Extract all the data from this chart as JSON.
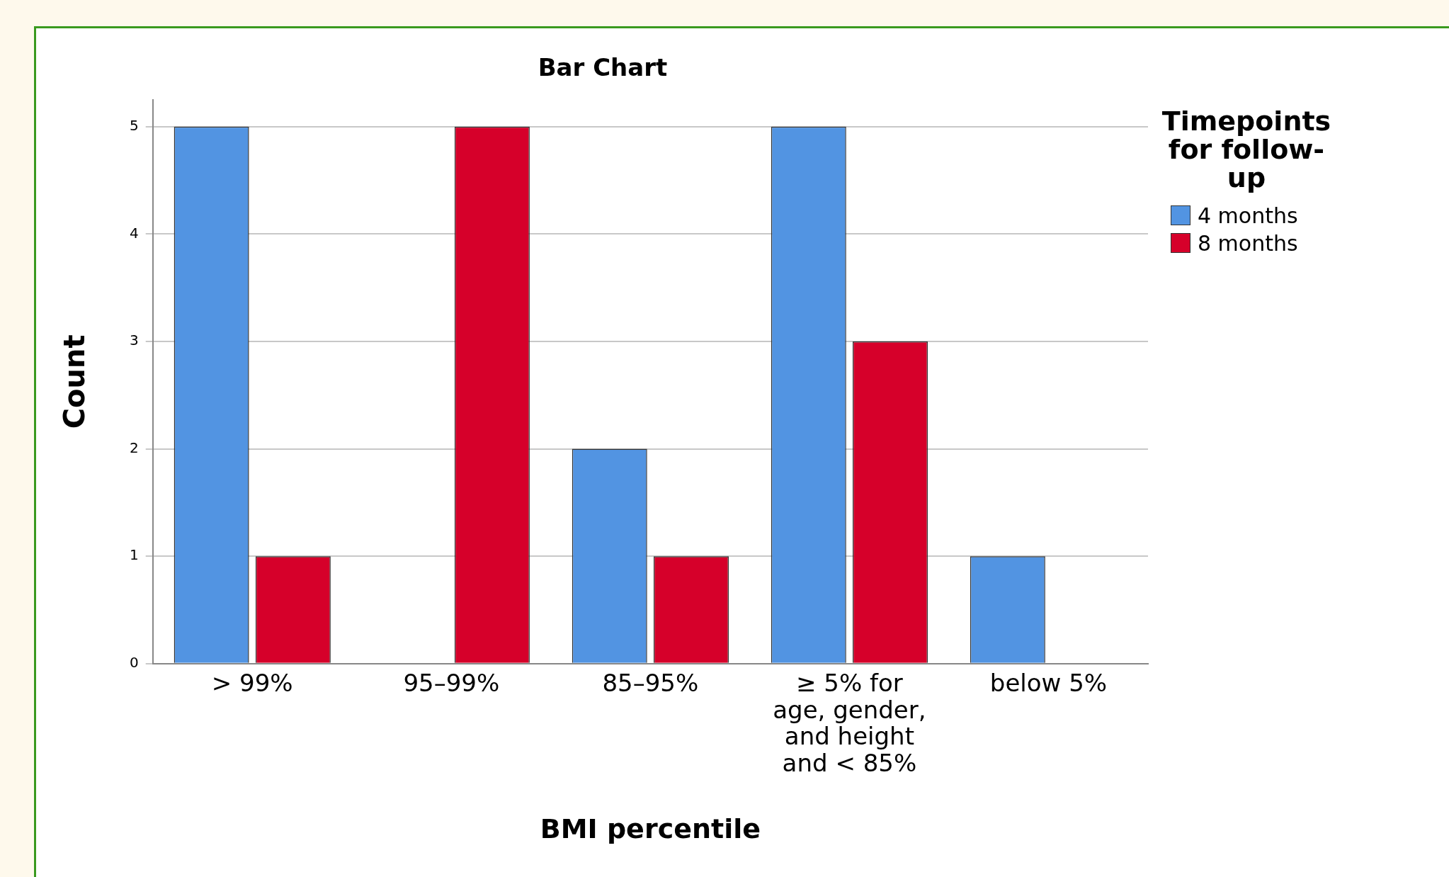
{
  "chart_data": {
    "type": "bar",
    "title": "Bar Chart",
    "xlabel": "BMI percentile",
    "ylabel": "Count",
    "legend_title": "Timepoints for follow-up",
    "categories": [
      "> 99%",
      "95–99%",
      "85–95%",
      "≥ 5% for age, gender, and height and < 85%",
      "below 5%"
    ],
    "series": [
      {
        "name": "4 months",
        "color": "#5294e2",
        "values": [
          5,
          null,
          2,
          5,
          1
        ]
      },
      {
        "name": "8 months",
        "color": "#d6002a",
        "values": [
          1,
          5,
          1,
          3,
          null
        ]
      }
    ],
    "ylim": [
      0,
      5.25
    ],
    "yticks": [
      0,
      1,
      2,
      3,
      4,
      5
    ],
    "grid": "y",
    "legend": "right"
  }
}
